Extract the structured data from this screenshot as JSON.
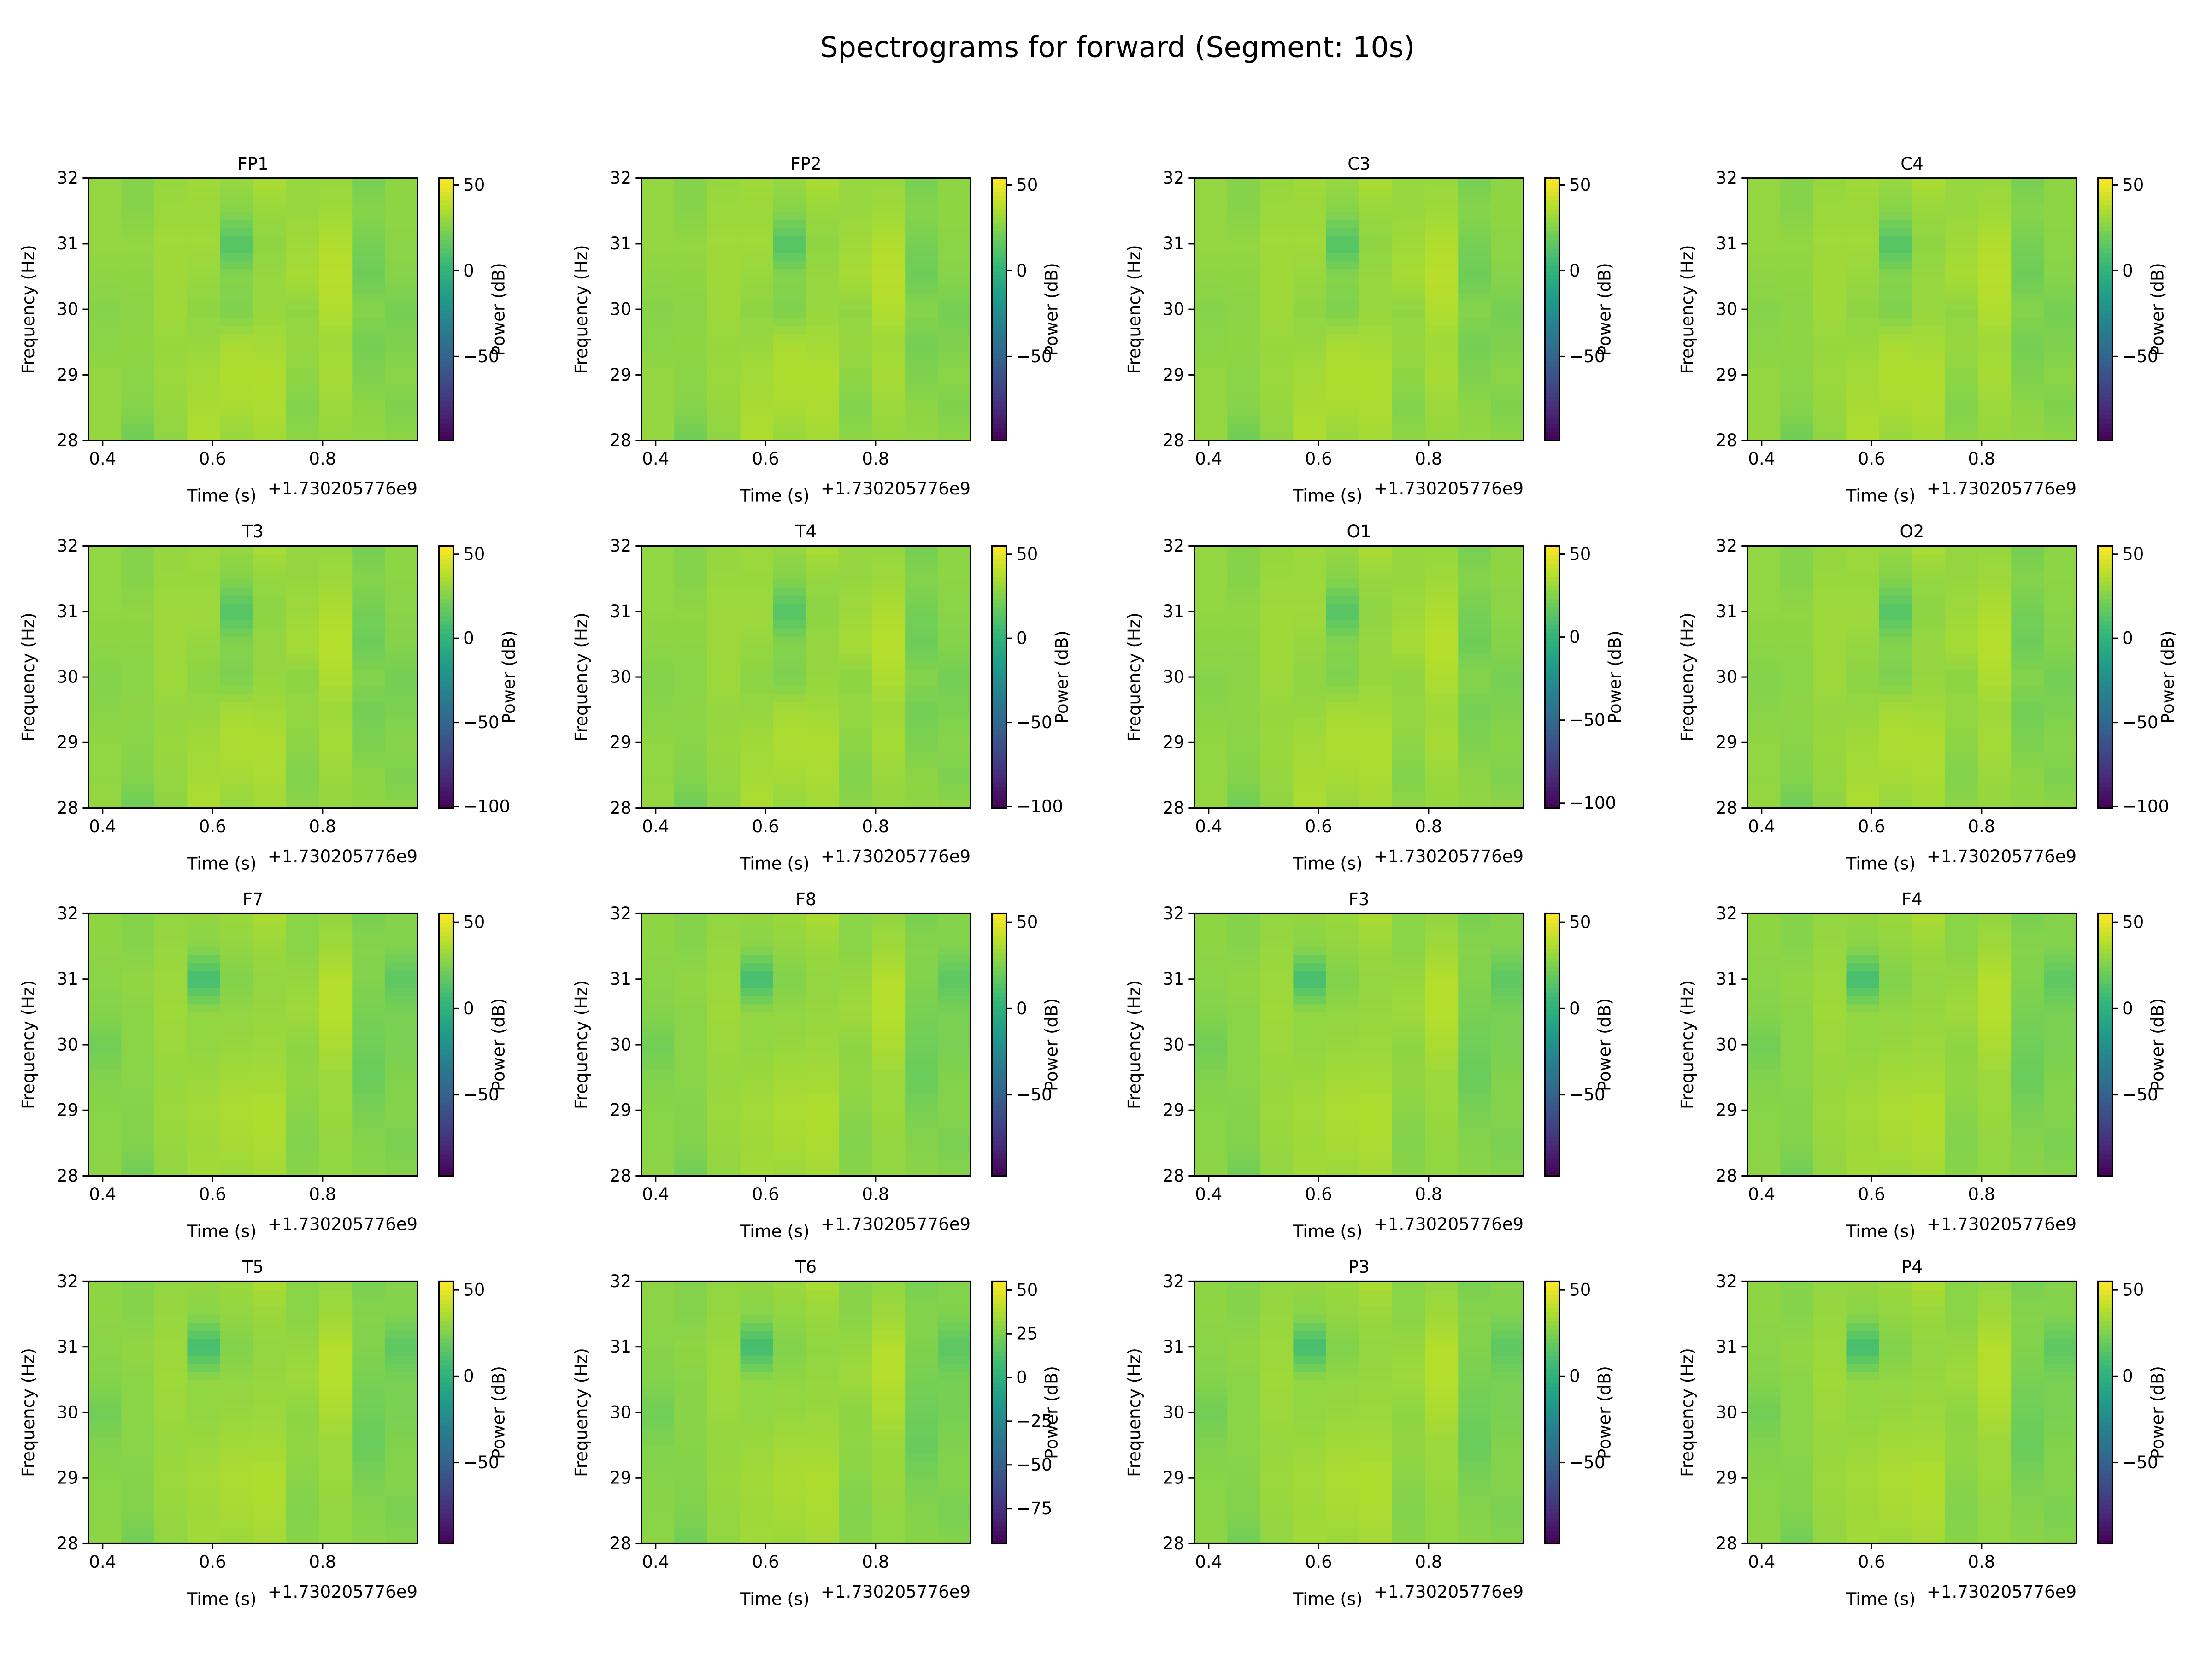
{
  "chart_data": {
    "type": "heatmap",
    "title": "Spectrograms for forward (Segment: 10s)",
    "xlabel": "Time (s)",
    "x_offset_label": "+1.730205776e9",
    "ylabel": "Frequency (Hz)",
    "colorbar_label": "Power (dB)",
    "colormap": "viridis",
    "xlim": [
      0.374,
      0.973
    ],
    "ylim": [
      28,
      32
    ],
    "xticks": [
      "0.4",
      "0.6",
      "0.8"
    ],
    "yticks": [
      "28",
      "29",
      "30",
      "31",
      "32"
    ],
    "grid": false,
    "layout": "4x4",
    "time_bins_start": [
      0.374,
      0.434,
      0.494,
      0.554,
      0.614,
      0.674,
      0.734,
      0.794,
      0.854,
      0.914
    ],
    "freq_samples": [
      28,
      28.5,
      29,
      29.5,
      30,
      30.5,
      31,
      31.5,
      32
    ],
    "power_db_estimate_pattern_a": [
      [
        30,
        29,
        29,
        27,
        26,
        28,
        29,
        29,
        29
      ],
      [
        20,
        26,
        27,
        28,
        27,
        28,
        29,
        26,
        26
      ],
      [
        28,
        30,
        31,
        30,
        32,
        32,
        32,
        31,
        30
      ],
      [
        36,
        34,
        33,
        30,
        28,
        30,
        32,
        31,
        32
      ],
      [
        30,
        34,
        36,
        34,
        24,
        26,
        12,
        26,
        30
      ],
      [
        33,
        35,
        36,
        33,
        30,
        30,
        28,
        30,
        35
      ],
      [
        28,
        25,
        28,
        30,
        28,
        34,
        32,
        30,
        30
      ],
      [
        30,
        31,
        34,
        32,
        36,
        38,
        36,
        32,
        30
      ],
      [
        29,
        28,
        24,
        22,
        26,
        20,
        22,
        26,
        22
      ],
      [
        28,
        24,
        27,
        24,
        22,
        26,
        27,
        28,
        28
      ]
    ],
    "power_db_estimate_pattern_b": [
      [
        29,
        28,
        28,
        26,
        22,
        27,
        28,
        29,
        29
      ],
      [
        22,
        26,
        27,
        28,
        28,
        28,
        30,
        27,
        27
      ],
      [
        30,
        31,
        32,
        31,
        32,
        33,
        32,
        31,
        30
      ],
      [
        34,
        33,
        34,
        32,
        30,
        30,
        8,
        28,
        30
      ],
      [
        32,
        35,
        36,
        34,
        31,
        30,
        26,
        30,
        32
      ],
      [
        34,
        36,
        37,
        34,
        32,
        31,
        30,
        32,
        36
      ],
      [
        28,
        26,
        28,
        30,
        29,
        33,
        31,
        28,
        28
      ],
      [
        30,
        30,
        32,
        32,
        36,
        38,
        38,
        33,
        30
      ],
      [
        28,
        27,
        24,
        20,
        22,
        24,
        26,
        27,
        24
      ],
      [
        27,
        24,
        27,
        26,
        24,
        24,
        16,
        26,
        27
      ]
    ],
    "panels": [
      {
        "name": "FP1",
        "pattern": "a",
        "clim": [
          -99,
          54
        ],
        "cbar_ticks": [
          "50",
          "0",
          "−50"
        ],
        "cbar_tick_values": [
          50,
          0,
          -50
        ]
      },
      {
        "name": "FP2",
        "pattern": "a",
        "clim": [
          -99,
          54
        ],
        "cbar_ticks": [
          "50",
          "0",
          "−50"
        ],
        "cbar_tick_values": [
          50,
          0,
          -50
        ]
      },
      {
        "name": "C3",
        "pattern": "a",
        "clim": [
          -99,
          54
        ],
        "cbar_ticks": [
          "50",
          "0",
          "−50"
        ],
        "cbar_tick_values": [
          50,
          0,
          -50
        ]
      },
      {
        "name": "C4",
        "pattern": "a",
        "clim": [
          -99,
          54
        ],
        "cbar_ticks": [
          "50",
          "0",
          "−50"
        ],
        "cbar_tick_values": [
          50,
          0,
          -50
        ]
      },
      {
        "name": "T3",
        "pattern": "a",
        "clim": [
          -101,
          55
        ],
        "cbar_ticks": [
          "50",
          "0",
          "−50",
          "−100"
        ],
        "cbar_tick_values": [
          50,
          0,
          -50,
          -100
        ]
      },
      {
        "name": "T4",
        "pattern": "a",
        "clim": [
          -101,
          55
        ],
        "cbar_ticks": [
          "50",
          "0",
          "−50",
          "−100"
        ],
        "cbar_tick_values": [
          50,
          0,
          -50,
          -100
        ]
      },
      {
        "name": "O1",
        "pattern": "a",
        "clim": [
          -103,
          55
        ],
        "cbar_ticks": [
          "50",
          "0",
          "−50",
          "−100"
        ],
        "cbar_tick_values": [
          50,
          0,
          -50,
          -100
        ]
      },
      {
        "name": "O2",
        "pattern": "a",
        "clim": [
          -101,
          55
        ],
        "cbar_ticks": [
          "50",
          "0",
          "−50",
          "−100"
        ],
        "cbar_tick_values": [
          50,
          0,
          -50,
          -100
        ]
      },
      {
        "name": "F7",
        "pattern": "b",
        "clim": [
          -97,
          55
        ],
        "cbar_ticks": [
          "50",
          "0",
          "−50"
        ],
        "cbar_tick_values": [
          50,
          0,
          -50
        ]
      },
      {
        "name": "F8",
        "pattern": "b",
        "clim": [
          -97,
          55
        ],
        "cbar_ticks": [
          "50",
          "0",
          "−50"
        ],
        "cbar_tick_values": [
          50,
          0,
          -50
        ]
      },
      {
        "name": "F3",
        "pattern": "b",
        "clim": [
          -97,
          55
        ],
        "cbar_ticks": [
          "50",
          "0",
          "−50"
        ],
        "cbar_tick_values": [
          50,
          0,
          -50
        ]
      },
      {
        "name": "F4",
        "pattern": "b",
        "clim": [
          -97,
          55
        ],
        "cbar_ticks": [
          "50",
          "0",
          "−50"
        ],
        "cbar_tick_values": [
          50,
          0,
          -50
        ]
      },
      {
        "name": "T5",
        "pattern": "b",
        "clim": [
          -97,
          55
        ],
        "cbar_ticks": [
          "50",
          "0",
          "−50"
        ],
        "cbar_tick_values": [
          50,
          0,
          -50
        ]
      },
      {
        "name": "T6",
        "pattern": "b",
        "clim": [
          -95,
          55
        ],
        "cbar_ticks": [
          "50",
          "25",
          "0",
          "−25",
          "−50",
          "−75"
        ],
        "cbar_tick_values": [
          50,
          25,
          0,
          -25,
          -50,
          -75
        ]
      },
      {
        "name": "P3",
        "pattern": "b",
        "clim": [
          -97,
          55
        ],
        "cbar_ticks": [
          "50",
          "0",
          "−50"
        ],
        "cbar_tick_values": [
          50,
          0,
          -50
        ]
      },
      {
        "name": "P4",
        "pattern": "b",
        "clim": [
          -97,
          55
        ],
        "cbar_ticks": [
          "50",
          "0",
          "−50"
        ],
        "cbar_tick_values": [
          50,
          0,
          -50
        ]
      }
    ]
  }
}
